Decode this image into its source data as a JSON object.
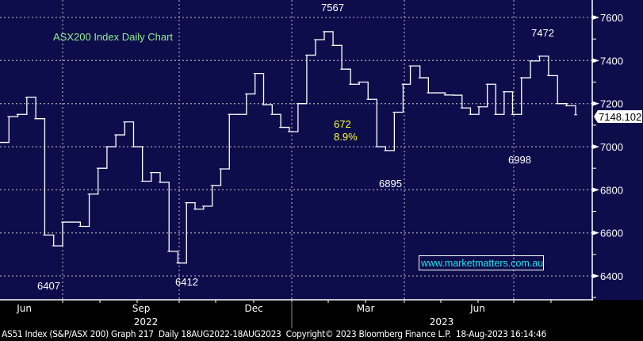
{
  "chart_data": {
    "type": "line",
    "title": "ASX200 Index Daily Chart",
    "y_axis": {
      "range": [
        6300,
        7700
      ],
      "ticks": [
        6400,
        6600,
        6800,
        7000,
        7200,
        7400,
        7600
      ],
      "position": "right"
    },
    "x_axis": {
      "month_labels": [
        {
          "label": "Jun",
          "date": "2022-06-01"
        },
        {
          "label": "Sep",
          "date": "2022-09-01"
        },
        {
          "label": "Dec",
          "date": "2022-12-01"
        },
        {
          "label": "Mar",
          "date": "2023-03-01"
        },
        {
          "label": "Jun",
          "date": "2023-06-01"
        }
      ],
      "year_labels": [
        {
          "label": "2022"
        },
        {
          "label": "2023"
        }
      ]
    },
    "grid": true,
    "last_price": "7148.102",
    "series": [
      {
        "color": "#ffffff",
        "dates": [
          "2022-05-13",
          "2022-05-20",
          "2022-05-27",
          "2022-06-03",
          "2022-06-10",
          "2022-06-17",
          "2022-06-24",
          "2022-07-01",
          "2022-07-08",
          "2022-07-15",
          "2022-07-22",
          "2022-07-29",
          "2022-08-05",
          "2022-08-12",
          "2022-08-19",
          "2022-08-26",
          "2022-09-02",
          "2022-09-09",
          "2022-09-16",
          "2022-09-23",
          "2022-09-30",
          "2022-10-07",
          "2022-10-14",
          "2022-10-21",
          "2022-10-28",
          "2022-11-04",
          "2022-11-11",
          "2022-11-18",
          "2022-11-25",
          "2022-12-02",
          "2022-12-09",
          "2022-12-16",
          "2022-12-23",
          "2022-12-30",
          "2023-01-06",
          "2023-01-13",
          "2023-01-20",
          "2023-01-27",
          "2023-02-03",
          "2023-02-10",
          "2023-02-17",
          "2023-02-24",
          "2023-03-03",
          "2023-03-10",
          "2023-03-17",
          "2023-03-24",
          "2023-03-31",
          "2023-04-06",
          "2023-04-14",
          "2023-04-21",
          "2023-04-28",
          "2023-05-05",
          "2023-05-12",
          "2023-05-19",
          "2023-05-26",
          "2023-06-02",
          "2023-06-09",
          "2023-06-16",
          "2023-06-23",
          "2023-06-30",
          "2023-07-07",
          "2023-07-14",
          "2023-07-21",
          "2023-07-28",
          "2023-08-04",
          "2023-08-11",
          "2023-08-18"
        ],
        "values": [
          7020,
          7140,
          7150,
          7230,
          7130,
          6590,
          6540,
          6650,
          6650,
          6630,
          6780,
          6900,
          7000,
          7055,
          7115,
          7000,
          6840,
          6880,
          6835,
          6514,
          6460,
          6740,
          6710,
          6724,
          6820,
          6897,
          7150,
          7150,
          7245,
          7340,
          7195,
          7150,
          7090,
          7070,
          7200,
          7425,
          7497,
          7534,
          7470,
          7360,
          7290,
          7300,
          7220,
          7000,
          6982,
          7160,
          7290,
          7375,
          7320,
          7250,
          7250,
          7240,
          7239,
          7180,
          7150,
          7185,
          7290,
          7150,
          7255,
          7150,
          7320,
          7398,
          7420,
          7330,
          7200,
          7190,
          7148.102
        ]
      }
    ],
    "annotations": [
      {
        "text": "6407",
        "date": "2022-06-20",
        "value": 6407,
        "color": "#ffffff"
      },
      {
        "text": "6412",
        "date": "2022-10-03",
        "value": 6412,
        "color": "#ffffff"
      },
      {
        "text": "7567",
        "date": "2023-01-31",
        "value": 7567,
        "color": "#ffffff"
      },
      {
        "text": "6895",
        "date": "2023-03-14",
        "value": 6895,
        "color": "#ffffff"
      },
      {
        "text": "6998",
        "date": "2023-06-20",
        "value": 6998,
        "color": "#ffffff"
      },
      {
        "text": "7472",
        "date": "2023-07-20",
        "value": 7472,
        "color": "#ffffff"
      },
      {
        "text": "672",
        "color": "#ffff33"
      },
      {
        "text": "8.9%",
        "color": "#ffff33"
      }
    ],
    "watermark": "www.marketmatters.com.au"
  },
  "footer": "AS51 Index (S&P/ASX 200) Graph 217  Daily 18AUG2022-18AUG2023  Copyright© 2023 Bloomberg Finance L.P.  18-Aug-2023 16:14:46",
  "colors": {
    "background": "#0e0d4b",
    "grid": "#9a9aa8",
    "title": "#90ee90",
    "watermark": "#22e0e8",
    "annotation_yellow": "#ffff33"
  }
}
